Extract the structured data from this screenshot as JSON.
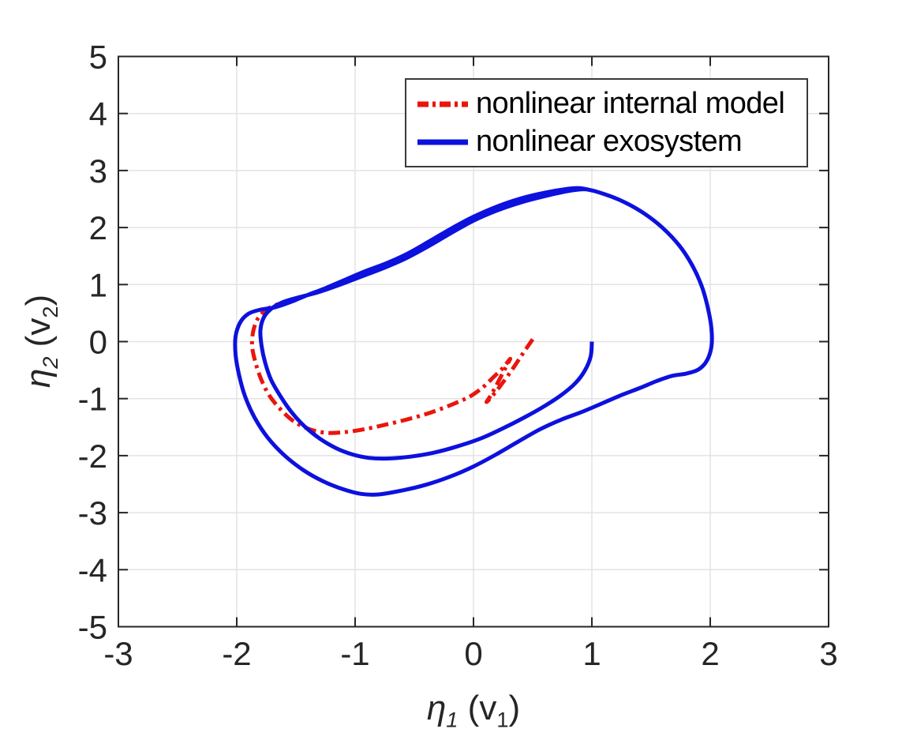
{
  "figure": {
    "background": "#ffffff"
  },
  "style": {
    "axis_color": "#262626",
    "grid_color": "#e3e3e3",
    "tick_label_color": "#262626",
    "legend_border_color": "#3a3a3a"
  },
  "axis_labels": {
    "x": {
      "sym": "η",
      "sub1": "1",
      "mid": " (v",
      "sub2": "1",
      "end": ")"
    },
    "y": {
      "sym": "η",
      "sub1": "2",
      "mid": " (v",
      "sub2": "2",
      "end": ")"
    }
  },
  "chart_data": {
    "type": "line",
    "title": "",
    "xlabel": "eta_1 (v_1)",
    "ylabel": "eta_2 (v_2)",
    "xlim": [
      -3,
      3
    ],
    "ylim": [
      -5,
      5
    ],
    "xticks": [
      -3,
      -2,
      -1,
      0,
      1,
      2,
      3
    ],
    "yticks": [
      -5,
      -4,
      -3,
      -2,
      -1,
      0,
      1,
      2,
      3,
      4,
      5
    ],
    "grid": true,
    "legend_position": "top-right-inside",
    "series": [
      {
        "name": "nonlinear internal model",
        "color": "#ea150c",
        "linestyle": "dash-dot",
        "linewidth": 5,
        "points": [
          [
            0.5,
            0.04
          ],
          [
            0.42,
            -0.2
          ],
          [
            0.33,
            -0.48
          ],
          [
            0.24,
            -0.74
          ],
          [
            0.16,
            -0.95
          ],
          [
            0.11,
            -1.06
          ],
          [
            0.15,
            -0.93
          ],
          [
            0.21,
            -0.7
          ],
          [
            0.27,
            -0.46
          ],
          [
            0.31,
            -0.3
          ],
          [
            0.25,
            -0.46
          ],
          [
            0.17,
            -0.62
          ],
          [
            0.08,
            -0.8
          ],
          [
            -0.02,
            -0.95
          ],
          [
            -0.12,
            -1.05
          ],
          [
            -0.25,
            -1.16
          ],
          [
            -0.4,
            -1.27
          ],
          [
            -0.57,
            -1.37
          ],
          [
            -0.75,
            -1.46
          ],
          [
            -0.93,
            -1.54
          ],
          [
            -1.1,
            -1.59
          ],
          [
            -1.24,
            -1.6
          ],
          [
            -1.38,
            -1.54
          ],
          [
            -1.51,
            -1.41
          ],
          [
            -1.62,
            -1.21
          ],
          [
            -1.72,
            -0.96
          ],
          [
            -1.79,
            -0.68
          ],
          [
            -1.84,
            -0.38
          ],
          [
            -1.87,
            -0.08
          ],
          [
            -1.86,
            0.19
          ],
          [
            -1.82,
            0.41
          ],
          [
            -1.75,
            0.56
          ],
          [
            -1.66,
            0.65
          ],
          [
            -1.57,
            0.7
          ]
        ]
      },
      {
        "name": "nonlinear exosystem",
        "color": "#0d11dd",
        "linestyle": "solid",
        "linewidth": 5,
        "points": [
          [
            1.0,
            0.0
          ],
          [
            0.99,
            -0.26
          ],
          [
            0.94,
            -0.51
          ],
          [
            0.86,
            -0.73
          ],
          [
            0.74,
            -0.94
          ],
          [
            0.6,
            -1.13
          ],
          [
            0.43,
            -1.33
          ],
          [
            0.25,
            -1.52
          ],
          [
            0.06,
            -1.7
          ],
          [
            -0.14,
            -1.84
          ],
          [
            -0.34,
            -1.95
          ],
          [
            -0.54,
            -2.02
          ],
          [
            -0.72,
            -2.05
          ],
          [
            -0.88,
            -2.04
          ],
          [
            -1.02,
            -1.98
          ],
          [
            -1.16,
            -1.87
          ],
          [
            -1.3,
            -1.7
          ],
          [
            -1.43,
            -1.48
          ],
          [
            -1.54,
            -1.23
          ],
          [
            -1.63,
            -0.96
          ],
          [
            -1.71,
            -0.67
          ],
          [
            -1.76,
            -0.37
          ],
          [
            -1.79,
            -0.08
          ],
          [
            -1.8,
            0.2
          ],
          [
            -1.77,
            0.43
          ],
          [
            -1.7,
            0.59
          ],
          [
            -1.6,
            0.7
          ],
          [
            -1.47,
            0.78
          ],
          [
            -1.32,
            0.86
          ],
          [
            -1.15,
            0.98
          ],
          [
            -0.96,
            1.13
          ],
          [
            -0.77,
            1.28
          ],
          [
            -0.58,
            1.45
          ],
          [
            -0.39,
            1.66
          ],
          [
            -0.2,
            1.89
          ],
          [
            0.0,
            2.12
          ],
          [
            0.2,
            2.3
          ],
          [
            0.4,
            2.44
          ],
          [
            0.6,
            2.55
          ],
          [
            0.8,
            2.64
          ],
          [
            0.95,
            2.67
          ],
          [
            1.1,
            2.59
          ],
          [
            1.27,
            2.45
          ],
          [
            1.44,
            2.25
          ],
          [
            1.6,
            1.99
          ],
          [
            1.74,
            1.68
          ],
          [
            1.85,
            1.33
          ],
          [
            1.93,
            0.96
          ],
          [
            1.98,
            0.59
          ],
          [
            2.01,
            0.23
          ],
          [
            2.01,
            -0.09
          ],
          [
            1.97,
            -0.34
          ],
          [
            1.9,
            -0.49
          ],
          [
            1.8,
            -0.56
          ],
          [
            1.68,
            -0.6
          ],
          [
            1.55,
            -0.69
          ],
          [
            1.41,
            -0.81
          ],
          [
            1.26,
            -0.93
          ],
          [
            1.09,
            -1.08
          ],
          [
            0.92,
            -1.23
          ],
          [
            0.74,
            -1.37
          ],
          [
            0.56,
            -1.54
          ],
          [
            0.38,
            -1.75
          ],
          [
            0.19,
            -1.98
          ],
          [
            0.0,
            -2.19
          ],
          [
            -0.2,
            -2.37
          ],
          [
            -0.4,
            -2.51
          ],
          [
            -0.6,
            -2.61
          ],
          [
            -0.8,
            -2.68
          ],
          [
            -0.95,
            -2.67
          ],
          [
            -1.1,
            -2.59
          ],
          [
            -1.27,
            -2.45
          ],
          [
            -1.44,
            -2.25
          ],
          [
            -1.6,
            -1.99
          ],
          [
            -1.74,
            -1.68
          ],
          [
            -1.85,
            -1.33
          ],
          [
            -1.93,
            -0.96
          ],
          [
            -1.98,
            -0.59
          ],
          [
            -2.01,
            -0.23
          ],
          [
            -2.01,
            0.09
          ],
          [
            -1.97,
            0.34
          ],
          [
            -1.9,
            0.49
          ],
          [
            -1.8,
            0.56
          ],
          [
            -1.68,
            0.6
          ],
          [
            -1.55,
            0.69
          ],
          [
            -1.41,
            0.81
          ],
          [
            -1.26,
            0.93
          ],
          [
            -1.09,
            1.08
          ],
          [
            -0.92,
            1.23
          ],
          [
            -0.74,
            1.37
          ],
          [
            -0.56,
            1.54
          ],
          [
            -0.38,
            1.75
          ],
          [
            -0.19,
            1.98
          ],
          [
            0.0,
            2.19
          ],
          [
            0.2,
            2.37
          ],
          [
            0.4,
            2.51
          ],
          [
            0.6,
            2.61
          ],
          [
            0.8,
            2.68
          ],
          [
            0.9,
            2.69
          ],
          [
            1.0,
            2.65
          ]
        ]
      }
    ]
  }
}
